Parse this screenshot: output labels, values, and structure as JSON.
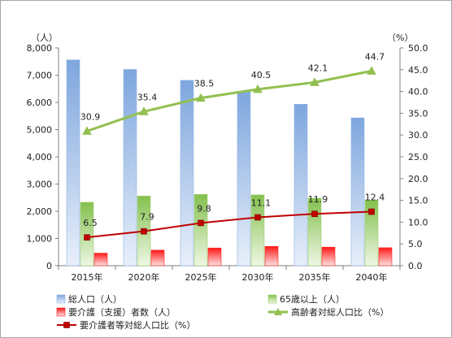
{
  "chart_data": {
    "type": "bar",
    "categories": [
      "2015年",
      "2020年",
      "2025年",
      "2030年",
      "2035年",
      "2040年"
    ],
    "left_unit": "（人）",
    "right_unit": "（%）",
    "left_axis": {
      "range": [
        0,
        8000
      ],
      "ticks": [
        "0",
        "1,000",
        "2,000",
        "3,000",
        "4,000",
        "5,000",
        "6,000",
        "7,000",
        "8,000"
      ]
    },
    "right_axis": {
      "range": [
        0,
        50
      ],
      "ticks": [
        "0.0",
        "5.0",
        "10.0",
        "15.0",
        "20.0",
        "25.0",
        "30.0",
        "35.0",
        "40.0",
        "45.0",
        "50.0"
      ]
    },
    "bar_series": [
      {
        "name": "総人口（人）",
        "values": [
          7560,
          7210,
          6810,
          6380,
          5930,
          5430
        ],
        "color": "#8eb4e3"
      },
      {
        "name": "65歳以上（人）",
        "values": [
          2330,
          2560,
          2620,
          2600,
          2480,
          2410
        ],
        "color": "#9bcf6b"
      },
      {
        "name": "要介護（支援）者数（人）",
        "values": [
          460,
          570,
          650,
          710,
          680,
          660
        ],
        "color": "#ff2020"
      }
    ],
    "line_series": [
      {
        "name": "高齢者対総人口比（%）",
        "values": [
          30.9,
          35.4,
          38.5,
          40.5,
          42.1,
          44.7
        ],
        "labels": [
          "30.9",
          "35.4",
          "38.5",
          "40.5",
          "42.1",
          "44.7"
        ],
        "color": "#92c050",
        "marker": "triangle"
      },
      {
        "name": "要介護者等対総人口比（%）",
        "values": [
          6.5,
          7.9,
          9.8,
          11.1,
          11.9,
          12.4
        ],
        "labels": [
          "6.5",
          "7.9",
          "9.8",
          "11.1",
          "11.9",
          "12.4"
        ],
        "color": "#c00000",
        "marker": "square"
      }
    ],
    "grid": false,
    "legend_position": "bottom"
  }
}
